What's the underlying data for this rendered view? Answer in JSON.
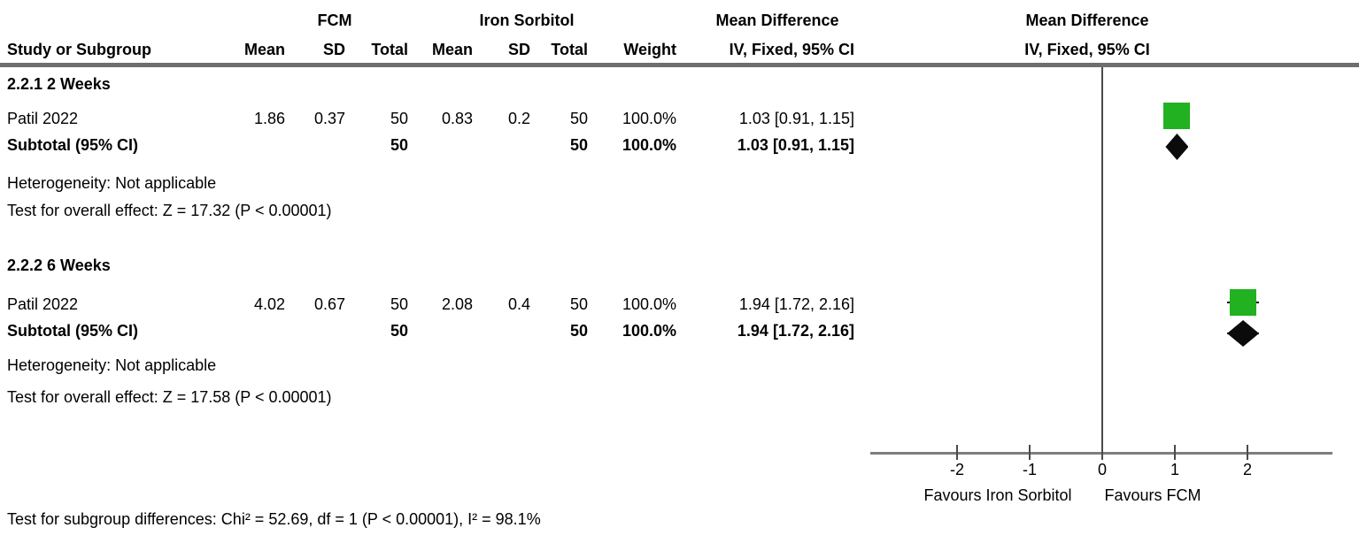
{
  "header": {
    "group_fcm": "FCM",
    "group_iron_sorbitol": "Iron Sorbitol",
    "group_mean_difference": "Mean Difference",
    "col_study": "Study or Subgroup",
    "col_mean": "Mean",
    "col_sd": "SD",
    "col_total": "Total",
    "col_weight": "Weight",
    "col_ci": "IV, Fixed, 95% CI",
    "plot_title_line1": "Mean Difference",
    "plot_title_line2": "IV, Fixed, 95% CI"
  },
  "subgroups": [
    {
      "title": "2.2.1 2 Weeks",
      "study": {
        "name": "Patil 2022",
        "mean1": "1.86",
        "sd1": "0.37",
        "total1": "50",
        "mean2": "0.83",
        "sd2": "0.2",
        "total2": "50",
        "weight": "100.0%",
        "ci": "1.03 [0.91, 1.15]"
      },
      "subtotal": {
        "label": "Subtotal (95% CI)",
        "total1": "50",
        "total2": "50",
        "weight": "100.0%",
        "ci": "1.03 [0.91, 1.15]"
      },
      "heterogeneity": "Heterogeneity: Not applicable",
      "overall_effect": "Test for overall effect: Z = 17.32 (P < 0.00001)"
    },
    {
      "title": "2.2.2 6 Weeks",
      "study": {
        "name": "Patil 2022",
        "mean1": "4.02",
        "sd1": "0.67",
        "total1": "50",
        "mean2": "2.08",
        "sd2": "0.4",
        "total2": "50",
        "weight": "100.0%",
        "ci": "1.94 [1.72, 2.16]"
      },
      "subtotal": {
        "label": "Subtotal (95% CI)",
        "total1": "50",
        "total2": "50",
        "weight": "100.0%",
        "ci": "1.94 [1.72, 2.16]"
      },
      "heterogeneity": "Heterogeneity: Not applicable",
      "overall_effect": "Test for overall effect: Z = 17.58 (P < 0.00001)"
    }
  ],
  "footer": "Test for subgroup differences: Chi² = 52.69, df = 1 (P < 0.00001), I² = 98.1%",
  "colors": {
    "square_green": "#21b121",
    "diamond_black": "#0b0b0b",
    "line_gray": "#7d7d7d"
  },
  "chart_data": {
    "type": "scatter",
    "subtype": "forest-plot",
    "title": "Mean Difference IV, Fixed, 95% CI",
    "x_ticks": [
      -2,
      -1,
      0,
      1,
      2
    ],
    "xlim": [
      -3.2,
      3.2
    ],
    "zero_line": 0,
    "favours_left": "Favours Iron Sorbitol",
    "favours_right": "Favours FCM",
    "points": [
      {
        "subgroup": "2.2.1 2 Weeks",
        "label": "Patil 2022",
        "marker": "square",
        "md": 1.03,
        "ci_low": 0.91,
        "ci_high": 1.15,
        "weight_pct": 100.0,
        "color": "#21b121"
      },
      {
        "subgroup": "2.2.1 2 Weeks",
        "label": "Subtotal (95% CI)",
        "marker": "diamond",
        "md": 1.03,
        "ci_low": 0.91,
        "ci_high": 1.15,
        "color": "#0b0b0b"
      },
      {
        "subgroup": "2.2.2 6 Weeks",
        "label": "Patil 2022",
        "marker": "square",
        "md": 1.94,
        "ci_low": 1.72,
        "ci_high": 2.16,
        "weight_pct": 100.0,
        "color": "#21b121"
      },
      {
        "subgroup": "2.2.2 6 Weeks",
        "label": "Subtotal (95% CI)",
        "marker": "diamond",
        "md": 1.94,
        "ci_low": 1.72,
        "ci_high": 2.16,
        "color": "#0b0b0b"
      }
    ]
  }
}
